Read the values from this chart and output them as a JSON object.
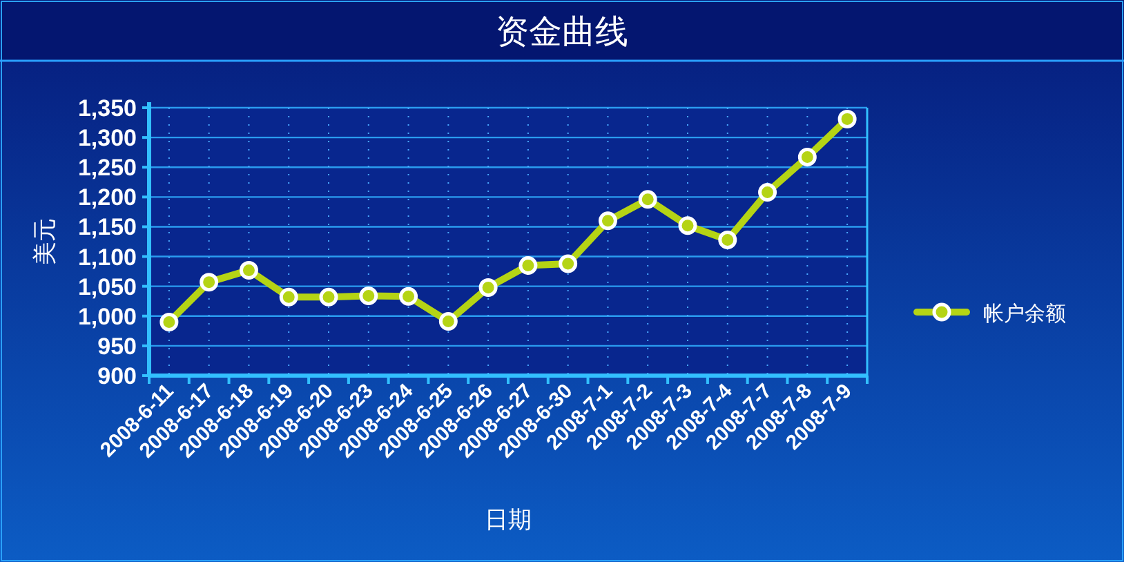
{
  "chart_data": {
    "type": "line",
    "title": "资金曲线",
    "xlabel": "日期",
    "ylabel": "美元",
    "categories": [
      "2008-6-11",
      "2008-6-17",
      "2008-6-18",
      "2008-6-19",
      "2008-6-20",
      "2008-6-23",
      "2008-6-24",
      "2008-6-25",
      "2008-6-26",
      "2008-6-27",
      "2008-6-30",
      "2008-7-1",
      "2008-7-2",
      "2008-7-3",
      "2008-7-4",
      "2008-7-7",
      "2008-7-8",
      "2008-7-9"
    ],
    "series": [
      {
        "name": "帐户余额",
        "color": "#b5d414",
        "values": [
          990,
          1057,
          1077,
          1032,
          1032,
          1034,
          1033,
          991,
          1048,
          1085,
          1088,
          1160,
          1196,
          1152,
          1128,
          1208,
          1267,
          1331
        ]
      }
    ],
    "ylim": [
      900,
      1350
    ],
    "yticks": [
      {
        "value": 900,
        "label": "900"
      },
      {
        "value": 950,
        "label": "950"
      },
      {
        "value": 1000,
        "label": "1,000"
      },
      {
        "value": 1050,
        "label": "1,050"
      },
      {
        "value": 1100,
        "label": "1,100"
      },
      {
        "value": 1150,
        "label": "1,150"
      },
      {
        "value": 1200,
        "label": "1,200"
      },
      {
        "value": 1250,
        "label": "1,250"
      },
      {
        "value": 1300,
        "label": "1,300"
      },
      {
        "value": 1350,
        "label": "1,350"
      }
    ],
    "grid": true,
    "legend": "right",
    "marker": "circle",
    "line_style": "solid"
  }
}
